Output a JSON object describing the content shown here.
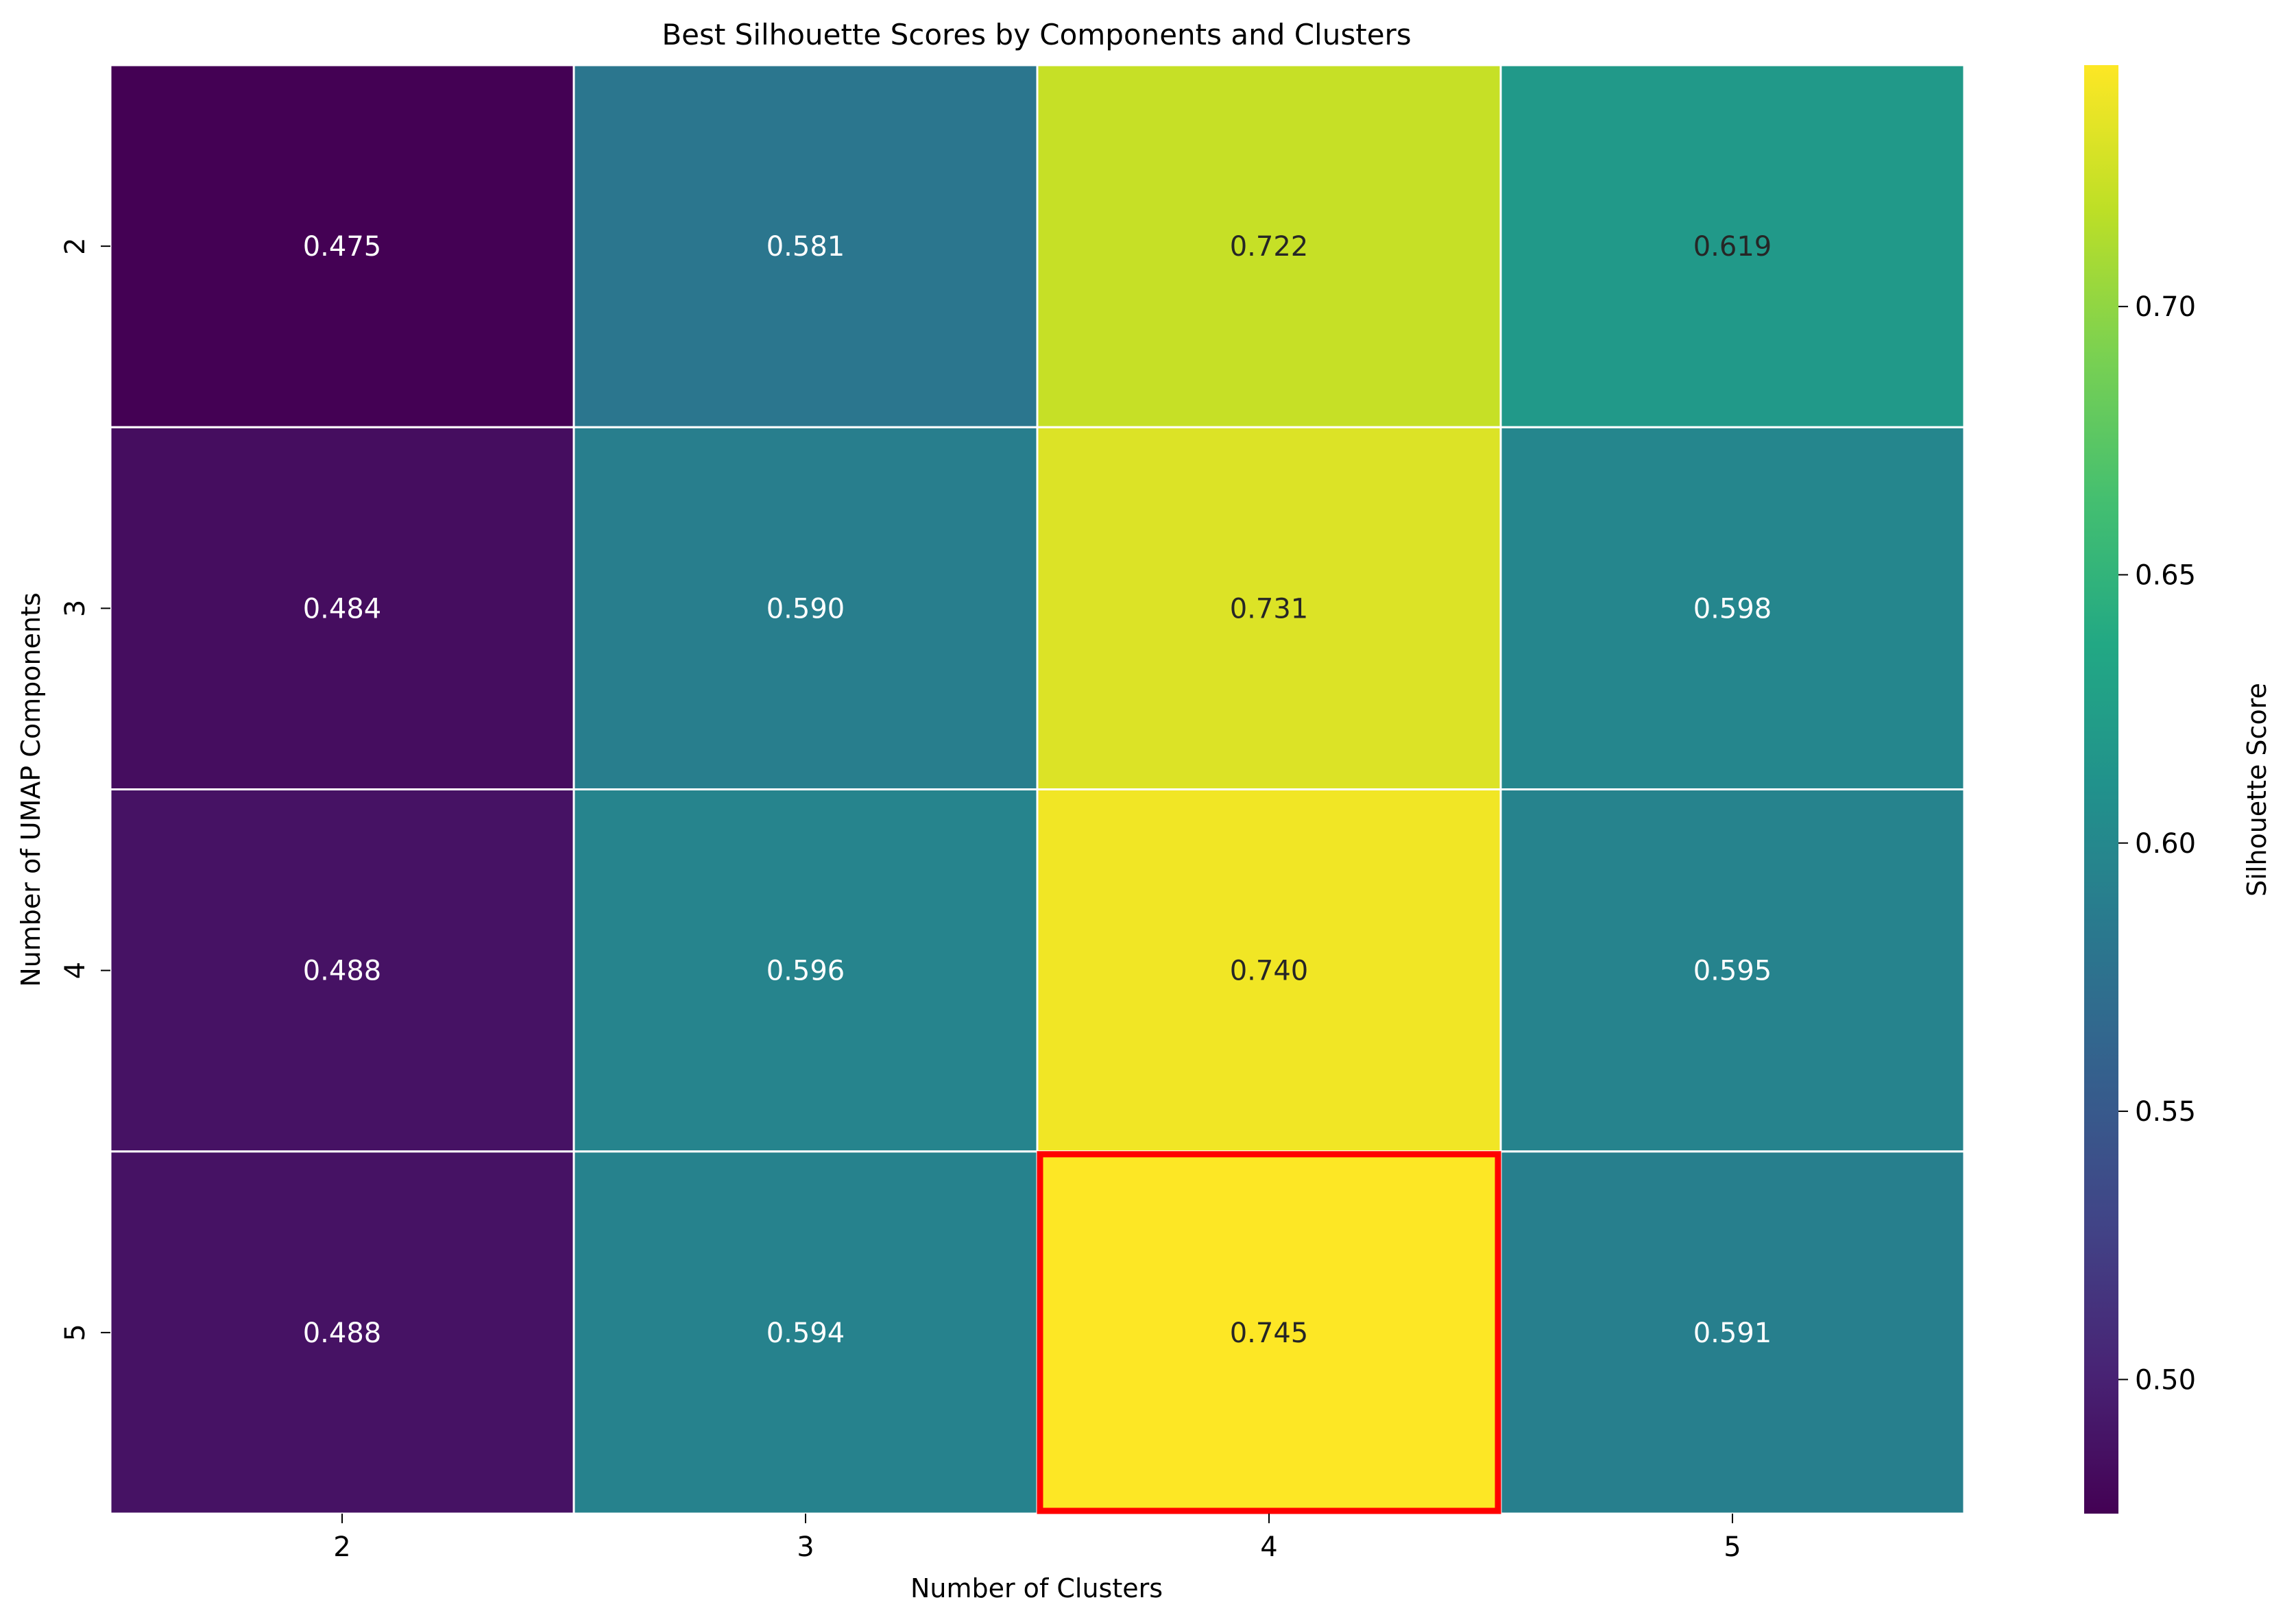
{
  "chart_data": {
    "type": "heatmap",
    "title": "Best Silhouette Scores by Components and Clusters",
    "xlabel": "Number of Clusters",
    "ylabel": "Number of UMAP Components",
    "x_categories": [
      "2",
      "3",
      "4",
      "5"
    ],
    "y_categories": [
      "2",
      "3",
      "4",
      "5"
    ],
    "values": [
      [
        0.475,
        0.581,
        0.722,
        0.619
      ],
      [
        0.484,
        0.59,
        0.731,
        0.598
      ],
      [
        0.488,
        0.596,
        0.74,
        0.595
      ],
      [
        0.488,
        0.594,
        0.745,
        0.591
      ]
    ],
    "value_labels": [
      [
        "0.475",
        "0.581",
        "0.722",
        "0.619"
      ],
      [
        "0.484",
        "0.590",
        "0.731",
        "0.598"
      ],
      [
        "0.488",
        "0.596",
        "0.740",
        "0.595"
      ],
      [
        "0.488",
        "0.594",
        "0.745",
        "0.591"
      ]
    ],
    "colormap": "viridis",
    "grid": false,
    "highlight": {
      "row": 3,
      "col": 2,
      "color": "#ff0000"
    },
    "colorbar": {
      "label": "Silhouette Score",
      "range": [
        0.475,
        0.745
      ],
      "ticks": [
        0.5,
        0.55,
        0.6,
        0.65,
        0.7
      ],
      "tick_labels": [
        "0.50",
        "0.55",
        "0.60",
        "0.65",
        "0.70"
      ]
    },
    "cell_border_color": "#ffffff"
  }
}
